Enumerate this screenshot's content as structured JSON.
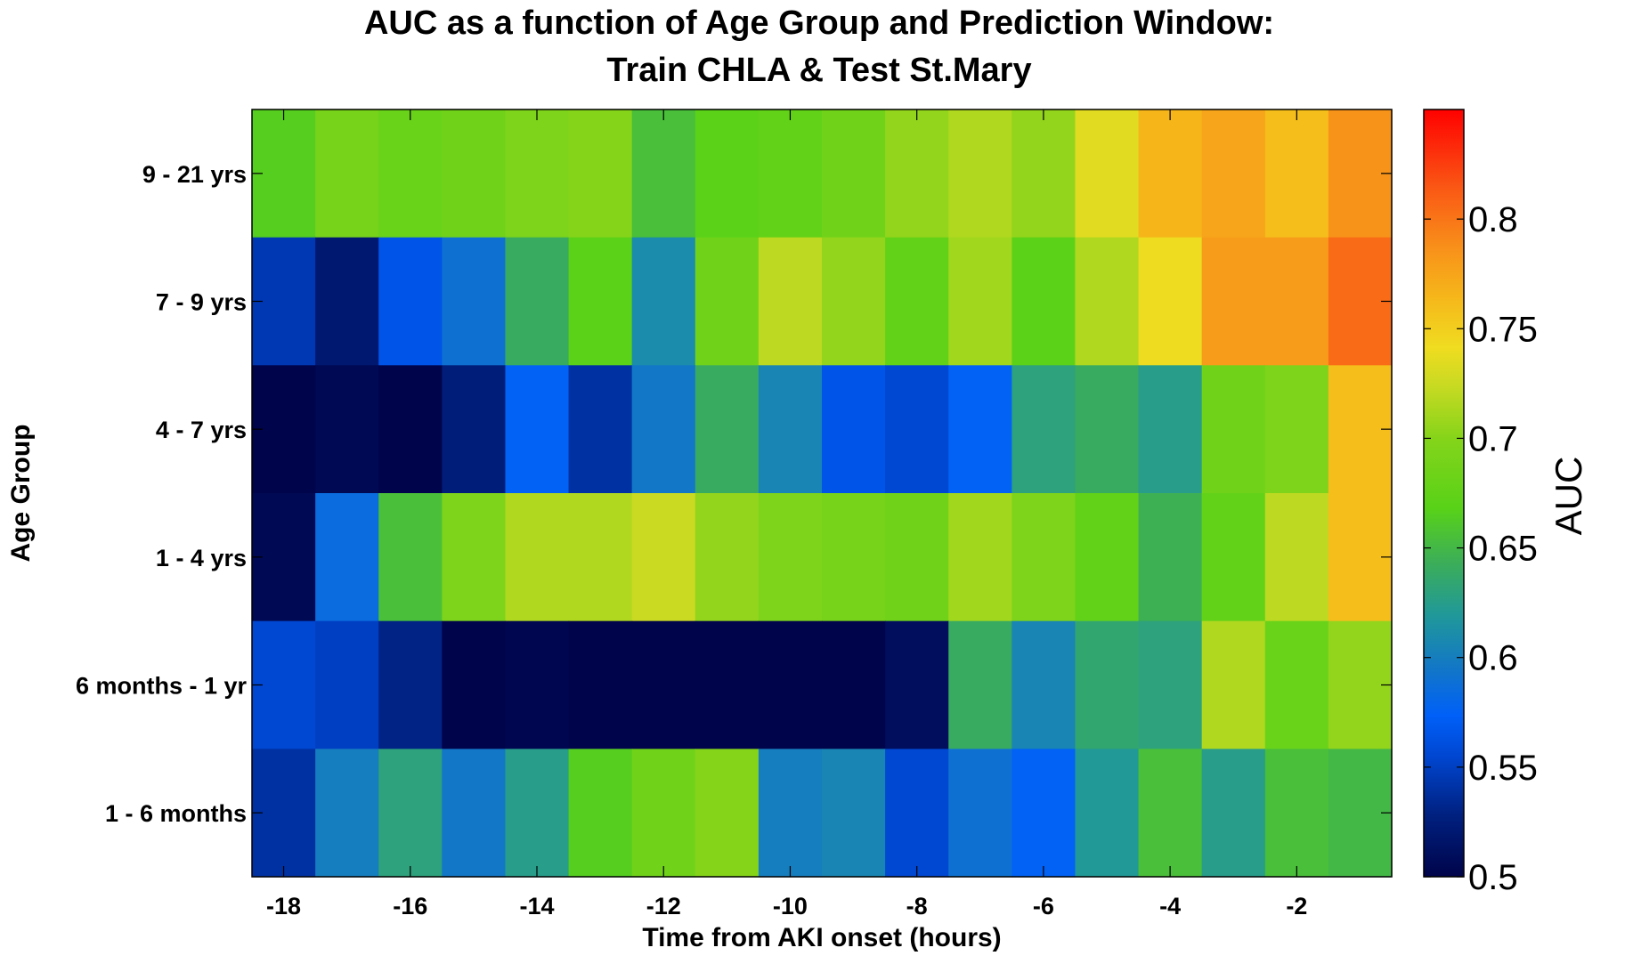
{
  "chart_data": {
    "type": "heatmap",
    "title": "AUC as a function of Age Group and Prediction Window:",
    "subtitle": "Train CHLA & Test St.Mary",
    "xlabel": "Time from AKI onset (hours)",
    "ylabel": "Age Group",
    "x": [
      -18,
      -17,
      -16,
      -15,
      -14,
      -13,
      -12,
      -11,
      -10,
      -9,
      -8,
      -7,
      -6,
      -5,
      -4,
      -3,
      -2,
      -1
    ],
    "x_ticks": [
      -18,
      -16,
      -14,
      -12,
      -10,
      -8,
      -6,
      -4,
      -2
    ],
    "y_categories": [
      "9 - 21 yrs",
      "7 - 9 yrs",
      "4 - 7 yrs",
      "1 - 4 yrs",
      "6 months - 1 yr",
      "1 - 6 months"
    ],
    "values": [
      [
        0.665,
        0.69,
        0.68,
        0.685,
        0.695,
        0.7,
        0.655,
        0.67,
        0.675,
        0.685,
        0.705,
        0.715,
        0.705,
        0.735,
        0.765,
        0.775,
        0.76,
        0.785
      ],
      [
        0.545,
        0.52,
        0.565,
        0.59,
        0.64,
        0.67,
        0.61,
        0.685,
        0.72,
        0.705,
        0.675,
        0.71,
        0.67,
        0.715,
        0.74,
        0.78,
        0.78,
        0.805
      ],
      [
        0.5,
        0.505,
        0.5,
        0.525,
        0.575,
        0.54,
        0.595,
        0.64,
        0.605,
        0.565,
        0.555,
        0.575,
        0.63,
        0.64,
        0.625,
        0.685,
        0.695,
        0.76
      ],
      [
        0.505,
        0.585,
        0.655,
        0.695,
        0.715,
        0.715,
        0.725,
        0.705,
        0.695,
        0.69,
        0.685,
        0.71,
        0.695,
        0.675,
        0.645,
        0.675,
        0.72,
        0.76
      ],
      [
        0.555,
        0.55,
        0.53,
        0.5,
        0.503,
        0.5,
        0.5,
        0.5,
        0.5,
        0.5,
        0.51,
        0.64,
        0.605,
        0.635,
        0.63,
        0.715,
        0.68,
        0.705
      ],
      [
        0.54,
        0.6,
        0.63,
        0.595,
        0.625,
        0.665,
        0.685,
        0.7,
        0.6,
        0.605,
        0.555,
        0.59,
        0.575,
        0.62,
        0.655,
        0.625,
        0.655,
        0.65
      ]
    ],
    "colorbar": {
      "label": "AUC",
      "range": [
        0.5,
        0.85
      ],
      "ticks": [
        "0.5",
        "0.55",
        "0.6",
        "0.65",
        "0.7",
        "0.75",
        "0.8"
      ]
    },
    "colormap_stops": [
      [
        "#00044a",
        0.0
      ],
      [
        "#00207f",
        0.08
      ],
      [
        "#0048d4",
        0.16
      ],
      [
        "#0060f8",
        0.21
      ],
      [
        "#1276c8",
        0.27
      ],
      [
        "#20989a",
        0.34
      ],
      [
        "#3cae58",
        0.41
      ],
      [
        "#58d218",
        0.48
      ],
      [
        "#84d41a",
        0.57
      ],
      [
        "#c8da22",
        0.64
      ],
      [
        "#f0dc20",
        0.69
      ],
      [
        "#f6b41a",
        0.76
      ],
      [
        "#f8901a",
        0.82
      ],
      [
        "#fa5614",
        0.9
      ],
      [
        "#ff0000",
        1.0
      ]
    ],
    "grid": false
  }
}
